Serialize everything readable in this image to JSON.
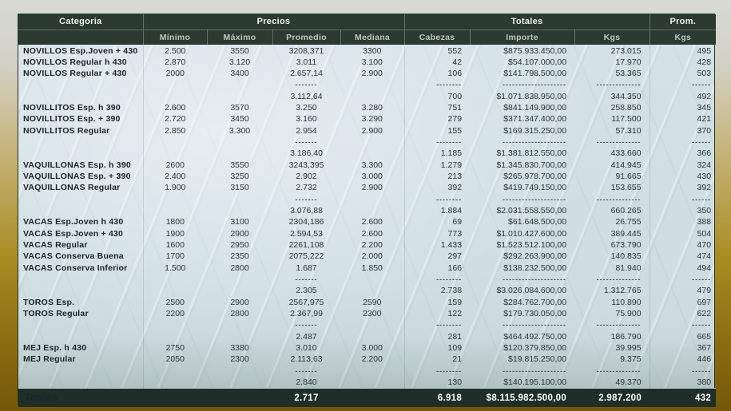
{
  "accent_colors": {
    "header_green": "#2c3b31",
    "footer_green": "#1e2f27",
    "body_teal": "#cedee3",
    "frame_gold": "#8a6c10"
  },
  "header": {
    "category_label": "Categoria",
    "group_precios": "Precios",
    "group_totales": "Totales",
    "group_prom": "Prom.",
    "sub_minimo": "Mínimo",
    "sub_maximo": "Máximo",
    "sub_promedio": "Promedio",
    "sub_mediana": "Mediana",
    "sub_cabezas": "Cabezas",
    "sub_importe": "Importe",
    "sub_kgs": "Kgs",
    "sub_prom_kgs": "Kgs"
  },
  "separator_dashes": {
    "promedio": "-------",
    "cabezas": "--------",
    "importe": "--------------------",
    "kgs": "--------------",
    "prom_kgs": "------"
  },
  "sections": [
    {
      "rows": [
        {
          "categoria": "NOVILLOS Esp.Joven + 430",
          "minimo": "2.500",
          "maximo": "3550",
          "promedio": "3208,371",
          "mediana": "3300",
          "cabezas": "552",
          "importe": "$875.933.450,00",
          "kgs": "273.015",
          "prom_kgs": "495"
        },
        {
          "categoria": "NOVILLOS Regular h 430",
          "minimo": "2.870",
          "maximo": "3.120",
          "promedio": "3.011",
          "mediana": "3.100",
          "cabezas": "42",
          "importe": "$54.107.000,00",
          "kgs": "17.970",
          "prom_kgs": "428"
        },
        {
          "categoria": "NOVILLOS Regular + 430",
          "minimo": "2000",
          "maximo": "3400",
          "promedio": "2.657,14",
          "mediana": "2.900",
          "cabezas": "106",
          "importe": "$141.798.500,00",
          "kgs": "53.365",
          "prom_kgs": "503"
        }
      ],
      "subtotal": {
        "promedio": "3.112,64",
        "cabezas": "700",
        "importe": "$1.071.838.950,00",
        "kgs": "344.350",
        "prom_kgs": "492"
      }
    },
    {
      "rows": [
        {
          "categoria": "NOVILLITOS Esp. h 390",
          "minimo": "2.600",
          "maximo": "3570",
          "promedio": "3.250",
          "mediana": "3.280",
          "cabezas": "751",
          "importe": "$841.149.900,00",
          "kgs": "258.850",
          "prom_kgs": "345"
        },
        {
          "categoria": "NOVILLITOS Esp. + 390",
          "minimo": "2.720",
          "maximo": "3450",
          "promedio": "3.160",
          "mediana": "3.290",
          "cabezas": "279",
          "importe": "$371.347.400,00",
          "kgs": "117.500",
          "prom_kgs": "421"
        },
        {
          "categoria": "NOVILLITOS Regular",
          "minimo": "2.850",
          "maximo": "3.300",
          "promedio": "2.954",
          "mediana": "2.900",
          "cabezas": "155",
          "importe": "$169.315.250,00",
          "kgs": "57.310",
          "prom_kgs": "370"
        }
      ],
      "subtotal": {
        "promedio": "3.186,40",
        "cabezas": "1.185",
        "importe": "$1.381.812.550,00",
        "kgs": "433.660",
        "prom_kgs": "366"
      }
    },
    {
      "rows": [
        {
          "categoria": "VAQUILLONAS Esp. h 390",
          "minimo": "2600",
          "maximo": "3550",
          "promedio": "3243,395",
          "mediana": "3.300",
          "cabezas": "1.279",
          "importe": "$1.345.830.700,00",
          "kgs": "414.945",
          "prom_kgs": "324"
        },
        {
          "categoria": "VAQUILLONAS Esp. + 390",
          "minimo": "2.400",
          "maximo": "3250",
          "promedio": "2.902",
          "mediana": "3.000",
          "cabezas": "213",
          "importe": "$265.978.700,00",
          "kgs": "91.665",
          "prom_kgs": "430"
        },
        {
          "categoria": "VAQUILLONAS Regular",
          "minimo": "1.900",
          "maximo": "3150",
          "promedio": "2.732",
          "mediana": "2.900",
          "cabezas": "392",
          "importe": "$419.749.150,00",
          "kgs": "153.655",
          "prom_kgs": "392"
        }
      ],
      "subtotal": {
        "promedio": "3.076,88",
        "cabezas": "1.884",
        "importe": "$2.031.558.550,00",
        "kgs": "660.265",
        "prom_kgs": "350"
      }
    },
    {
      "rows": [
        {
          "categoria": "VACAS Esp.Joven h 430",
          "minimo": "1800",
          "maximo": "3100",
          "promedio": "2304,186",
          "mediana": "2.600",
          "cabezas": "69",
          "importe": "$61.648.500,00",
          "kgs": "26.755",
          "prom_kgs": "388"
        },
        {
          "categoria": "VACAS Esp.Joven + 430",
          "minimo": "1900",
          "maximo": "2900",
          "promedio": "2.594,53",
          "mediana": "2.600",
          "cabezas": "773",
          "importe": "$1.010.427.600,00",
          "kgs": "389.445",
          "prom_kgs": "504"
        },
        {
          "categoria": "VACAS Regular",
          "minimo": "1600",
          "maximo": "2950",
          "promedio": "2261,108",
          "mediana": "2.200",
          "cabezas": "1.433",
          "importe": "$1.523.512.100,00",
          "kgs": "673.790",
          "prom_kgs": "470"
        },
        {
          "categoria": "VACAS Conserva Buena",
          "minimo": "1700",
          "maximo": "2350",
          "promedio": "2075,222",
          "mediana": "2.000",
          "cabezas": "297",
          "importe": "$292.263.900,00",
          "kgs": "140.835",
          "prom_kgs": "474"
        },
        {
          "categoria": "VACAS Conserva Inferior",
          "minimo": "1.500",
          "maximo": "2800",
          "promedio": "1.687",
          "mediana": "1.850",
          "cabezas": "166",
          "importe": "$138.232.500,00",
          "kgs": "81.940",
          "prom_kgs": "494"
        }
      ],
      "subtotal": {
        "promedio": "2.305",
        "cabezas": "2.738",
        "importe": "$3.026.084.600,00",
        "kgs": "1.312.765",
        "prom_kgs": "479"
      }
    },
    {
      "rows": [
        {
          "categoria": "TOROS Esp.",
          "minimo": "2500",
          "maximo": "2900",
          "promedio": "2567,975",
          "mediana": "2590",
          "cabezas": "159",
          "importe": "$284.762.700,00",
          "kgs": "110.890",
          "prom_kgs": "697"
        },
        {
          "categoria": "TOROS Regular",
          "minimo": "2200",
          "maximo": "2800",
          "promedio": "2.367,99",
          "mediana": "2300",
          "cabezas": "122",
          "importe": "$179.730.050,00",
          "kgs": "75.900",
          "prom_kgs": "622"
        }
      ],
      "subtotal": {
        "promedio": "2.487",
        "cabezas": "281",
        "importe": "$464.492.750,00",
        "kgs": "186.790",
        "prom_kgs": "665"
      }
    },
    {
      "rows": [
        {
          "categoria": "MEJ Esp. h 430",
          "minimo": "2750",
          "maximo": "3380",
          "promedio": "3.010",
          "mediana": "3.000",
          "cabezas": "109",
          "importe": "$120.379.850,00",
          "kgs": "39.995",
          "prom_kgs": "367"
        },
        {
          "categoria": "MEJ Regular",
          "minimo": "2050",
          "maximo": "2300",
          "promedio": "2.113,63",
          "mediana": "2.200",
          "cabezas": "21",
          "importe": "$19.815.250,00",
          "kgs": "9.375",
          "prom_kgs": "446"
        }
      ],
      "subtotal": {
        "promedio": "2.840",
        "cabezas": "130",
        "importe": "$140.195.100,00",
        "kgs": "49.370",
        "prom_kgs": "380"
      }
    }
  ],
  "grand_total": {
    "label": "Totales",
    "promedio": "2.717",
    "cabezas": "6.918",
    "importe": "$8.115.982.500,00",
    "kgs": "2.987.200",
    "prom_kgs": "432"
  }
}
